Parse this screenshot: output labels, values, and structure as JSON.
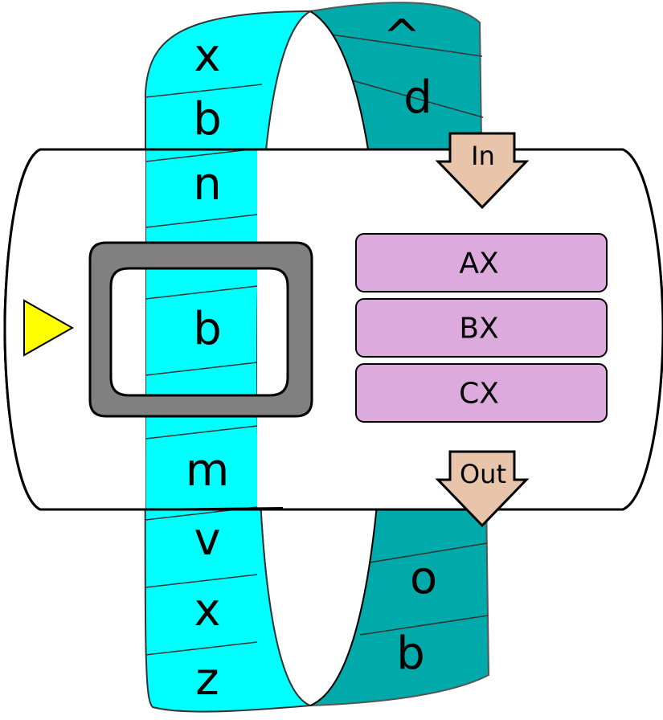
{
  "tape": {
    "front_cells": [
      "x",
      "b",
      "n",
      "b",
      "m",
      "v",
      "x",
      "z"
    ],
    "back_cells": [
      "^",
      "d",
      "o",
      "b"
    ]
  },
  "registers": [
    "AX",
    "BX",
    "CX"
  ],
  "io": {
    "in_label": "In",
    "out_label": "Out"
  },
  "colors": {
    "tape_front": "#00ffff",
    "tape_back": "#00aaaa",
    "register_fill": "#ddaadd",
    "io_arrow_fill": "#e8c4aa",
    "head_frame": "#808080",
    "pointer": "#ffff00"
  }
}
